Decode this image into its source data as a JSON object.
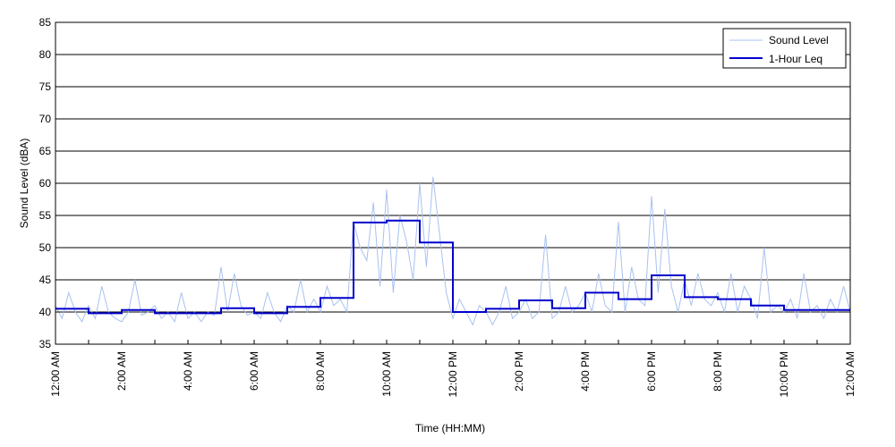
{
  "chart_data": {
    "type": "line",
    "title": "",
    "xlabel": "Time (HH:MM)",
    "ylabel": "Sound Level (dBA)",
    "ylim": [
      35,
      85
    ],
    "yticks": [
      35,
      40,
      45,
      50,
      55,
      60,
      65,
      70,
      75,
      80,
      85
    ],
    "xlim_hours": [
      0,
      24
    ],
    "xticks": [
      {
        "hour": 0,
        "label": "12:00 AM"
      },
      {
        "hour": 2,
        "label": "2:00 AM"
      },
      {
        "hour": 4,
        "label": "4:00 AM"
      },
      {
        "hour": 6,
        "label": "6:00 AM"
      },
      {
        "hour": 8,
        "label": "8:00 AM"
      },
      {
        "hour": 10,
        "label": "10:00 AM"
      },
      {
        "hour": 12,
        "label": "12:00 PM"
      },
      {
        "hour": 14,
        "label": "2:00 PM"
      },
      {
        "hour": 16,
        "label": "4:00 PM"
      },
      {
        "hour": 18,
        "label": "6:00 PM"
      },
      {
        "hour": 20,
        "label": "8:00 PM"
      },
      {
        "hour": 22,
        "label": "10:00 PM"
      },
      {
        "hour": 24,
        "label": "12:00 AM"
      }
    ],
    "grid": "horizontal",
    "legend_position": "top-right",
    "series": [
      {
        "name": "Sound Level",
        "color": "#a9c1f0",
        "style": "thin",
        "x_hours": [
          0,
          0.2,
          0.4,
          0.6,
          0.8,
          1,
          1.2,
          1.4,
          1.6,
          1.8,
          2,
          2.2,
          2.4,
          2.6,
          2.8,
          3,
          3.2,
          3.4,
          3.6,
          3.8,
          4,
          4.2,
          4.4,
          4.6,
          4.8,
          5,
          5.2,
          5.4,
          5.6,
          5.8,
          6,
          6.2,
          6.4,
          6.6,
          6.8,
          7,
          7.2,
          7.4,
          7.6,
          7.8,
          8,
          8.2,
          8.4,
          8.6,
          8.8,
          9,
          9.2,
          9.4,
          9.6,
          9.8,
          10,
          10.2,
          10.4,
          10.6,
          10.8,
          11,
          11.2,
          11.4,
          11.6,
          11.8,
          12,
          12.2,
          12.4,
          12.6,
          12.8,
          13,
          13.2,
          13.4,
          13.6,
          13.8,
          14,
          14.2,
          14.4,
          14.6,
          14.8,
          15,
          15.2,
          15.4,
          15.6,
          15.8,
          16,
          16.2,
          16.4,
          16.6,
          16.8,
          17,
          17.2,
          17.4,
          17.6,
          17.8,
          18,
          18.2,
          18.4,
          18.6,
          18.8,
          19,
          19.2,
          19.4,
          19.6,
          19.8,
          20,
          20.2,
          20.4,
          20.6,
          20.8,
          21,
          21.2,
          21.4,
          21.6,
          21.8,
          22,
          22.2,
          22.4,
          22.6,
          22.8,
          23,
          23.2,
          23.4,
          23.6,
          23.8,
          24
        ],
        "values": [
          41,
          39,
          43,
          40,
          38.5,
          41,
          39,
          44,
          40,
          39,
          38.5,
          40,
          45,
          39.5,
          40,
          41,
          39,
          40,
          38.5,
          43,
          39,
          40,
          38.5,
          40,
          39.5,
          47,
          40,
          46,
          41,
          39.5,
          40,
          39,
          43,
          40,
          38.5,
          41,
          40,
          45,
          40,
          42,
          40,
          44,
          41,
          42,
          40,
          54,
          50,
          48,
          57,
          44,
          59,
          43,
          55,
          51,
          45,
          60,
          47,
          61,
          52,
          43,
          39,
          42,
          40,
          38,
          41,
          40,
          38,
          40,
          44,
          39,
          40,
          42,
          39,
          40,
          52,
          39,
          40,
          44,
          40,
          41,
          43,
          40,
          46,
          41,
          40,
          54,
          40,
          47,
          42,
          41,
          58,
          43,
          56,
          44,
          40,
          45,
          41,
          46,
          42,
          41,
          43,
          40,
          46,
          40,
          44,
          42,
          39,
          50,
          40,
          41,
          40,
          42,
          39,
          46,
          40,
          41,
          39,
          42,
          40,
          44,
          40
        ]
      },
      {
        "name": "1-Hour Leq",
        "color": "#0000cc",
        "style": "step",
        "hourly_values": [
          40.5,
          39.8,
          40.3,
          39.8,
          39.8,
          40.6,
          39.8,
          40.8,
          42.2,
          53.9,
          54.2,
          50.8,
          40.0,
          40.5,
          41.8,
          40.6,
          43.0,
          42.0,
          45.7,
          42.3,
          42.0,
          41.0,
          40.3,
          40.3
        ]
      }
    ]
  }
}
